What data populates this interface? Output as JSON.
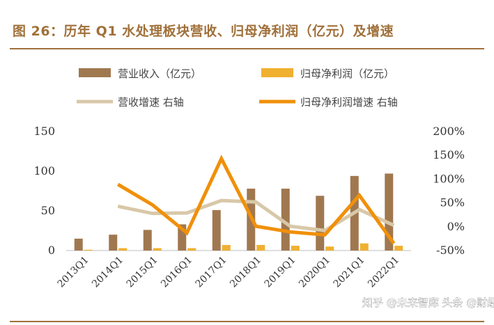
{
  "figure": {
    "title": "图 26：历年 Q1 水处理板块营收、归母净利润（亿元）及增速"
  },
  "watermark": "知乎 @未来智库 头条 @财经",
  "colors": {
    "revenue_bar": "#a07850",
    "profit_bar": "#f0b030",
    "revenue_growth_line": "#d8c8a8",
    "profit_growth_line": "#f0900a",
    "title": "#a0703a"
  },
  "chart_data": {
    "type": "bar",
    "categories": [
      "2013Q1",
      "2014Q1",
      "2015Q1",
      "2016Q1",
      "2017Q1",
      "2018Q1",
      "2019Q1",
      "2020Q1",
      "2021Q1",
      "2022Q1"
    ],
    "series": [
      {
        "name": "营业收入（亿元）",
        "type": "bar",
        "axis": "left",
        "values": [
          15,
          20,
          26,
          33,
          51,
          78,
          78,
          69,
          94,
          97
        ]
      },
      {
        "name": "归母净利润（亿元）",
        "type": "bar",
        "axis": "left",
        "values": [
          1,
          3,
          3,
          3,
          7,
          7,
          6,
          5,
          9,
          6
        ]
      },
      {
        "name": "营收增速 右轴",
        "type": "line",
        "axis": "right",
        "values": [
          null,
          43,
          28,
          29,
          55,
          52,
          1,
          -8,
          36,
          3
        ]
      },
      {
        "name": "归母净利润增速 右轴",
        "type": "line",
        "axis": "right",
        "values": [
          null,
          89,
          46,
          -13,
          143,
          1,
          -11,
          -17,
          66,
          -35
        ]
      }
    ],
    "left_axis": {
      "range": [
        0,
        150
      ],
      "ticks": [
        "0",
        "50",
        "100",
        "150"
      ]
    },
    "right_axis": {
      "range": [
        -50,
        200
      ],
      "ticks": [
        "-50%",
        "0%",
        "50%",
        "100%",
        "150%",
        "200%"
      ]
    },
    "grid": false,
    "legend": "top"
  }
}
